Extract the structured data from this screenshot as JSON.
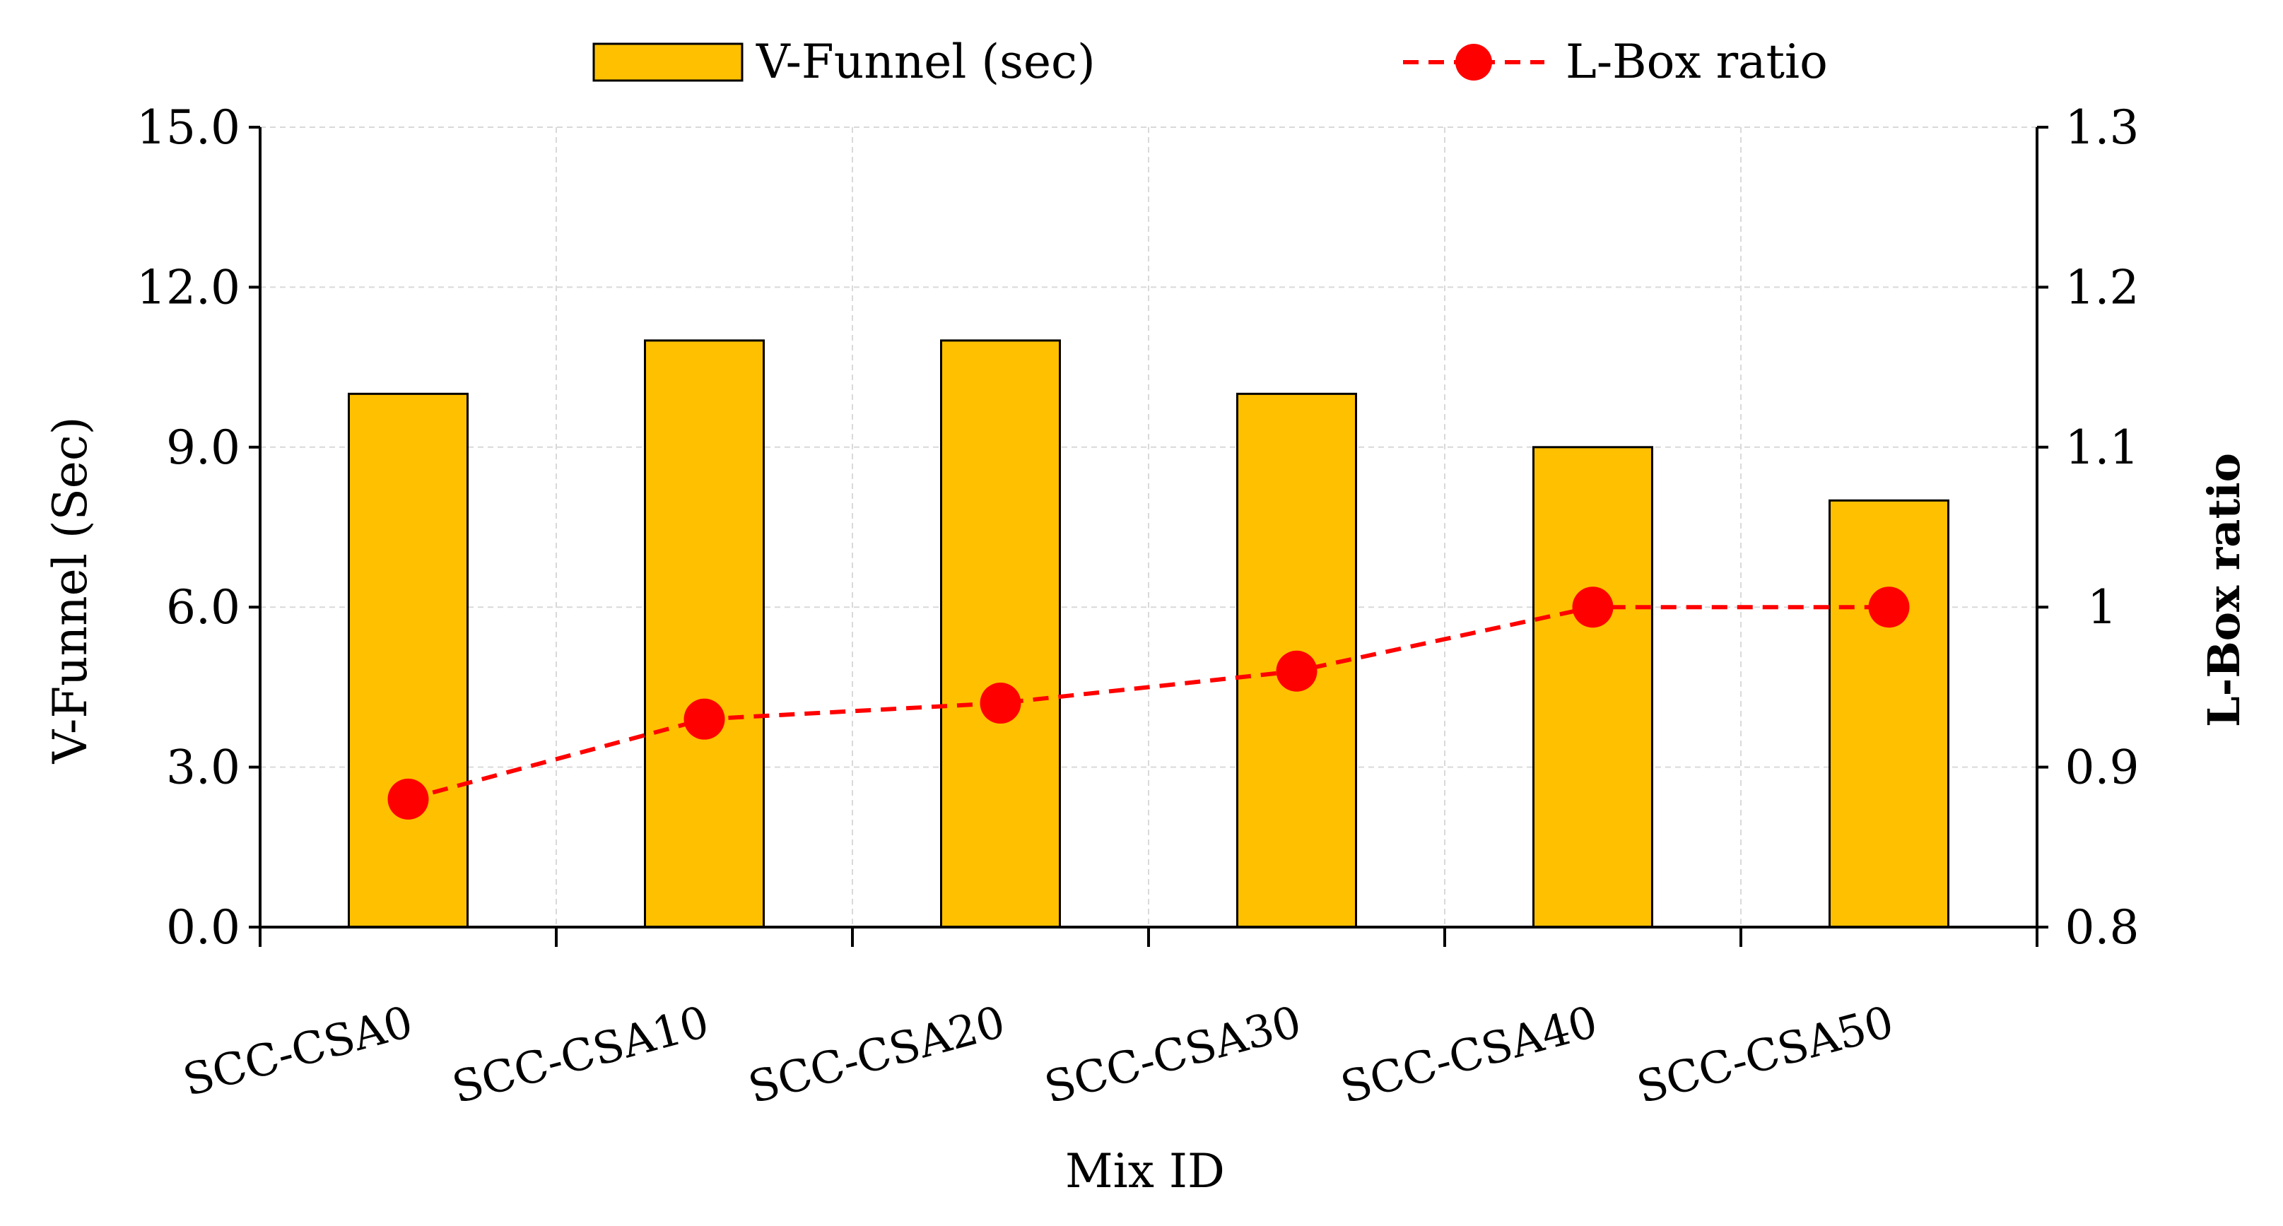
{
  "chart_data": {
    "type": "bar+line",
    "title": "",
    "xlabel": "Mix ID",
    "categories": [
      "SCC-CSA0",
      "SCC-CSA10",
      "SCC-CSA20",
      "SCC-CSA30",
      "SCC-CSA40",
      "SCC-CSA50"
    ],
    "y_left": {
      "label": "V-Funnel (Sec)",
      "ylim": [
        0,
        15
      ],
      "ticks": [
        0,
        3,
        6,
        9,
        12,
        15
      ],
      "tick_labels": [
        "0.0",
        "3.0",
        "6.0",
        "9.0",
        "12.0",
        "15.0"
      ]
    },
    "y_right": {
      "label": "L-Box ratio",
      "ylim": [
        0.8,
        1.3
      ],
      "ticks": [
        0.8,
        0.9,
        1.0,
        1.1,
        1.2,
        1.3
      ],
      "tick_labels": [
        "0.8",
        "0.9",
        "1",
        "1.1",
        "1.2",
        "1.3"
      ]
    },
    "series": [
      {
        "name": "V-Funnel (sec)",
        "type": "bar",
        "axis": "left",
        "color": "#FFC000",
        "edge_color": "#000000",
        "values": [
          10,
          11,
          11,
          10,
          9,
          8
        ]
      },
      {
        "name": "L-Box ratio",
        "type": "line",
        "axis": "right",
        "color": "#FF0000",
        "line_style": "dashed",
        "marker": "circle",
        "values": [
          0.88,
          0.93,
          0.94,
          0.96,
          1.0,
          1.0
        ]
      }
    ],
    "grid": true,
    "legend": "top-center"
  }
}
